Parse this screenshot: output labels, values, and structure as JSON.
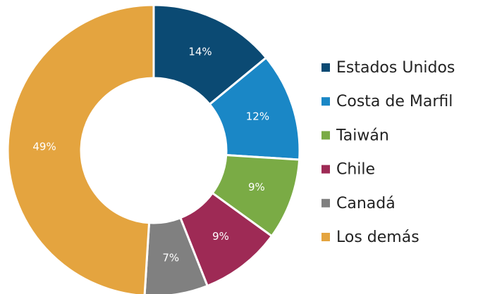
{
  "chart_data": {
    "type": "donut",
    "categories": [
      "Estados Unidos",
      "Costa de Marfil",
      "Taiwán",
      "Chile",
      "Canadá",
      "Los demás"
    ],
    "values": [
      14,
      12,
      9,
      9,
      7,
      49
    ],
    "value_labels": [
      "14%",
      "12%",
      "9%",
      "9%",
      "7%",
      "49%"
    ],
    "colors": [
      "#0b4a73",
      "#1a87c6",
      "#7aab45",
      "#9e2a55",
      "#808080",
      "#e4a43f"
    ],
    "legend": "right"
  }
}
